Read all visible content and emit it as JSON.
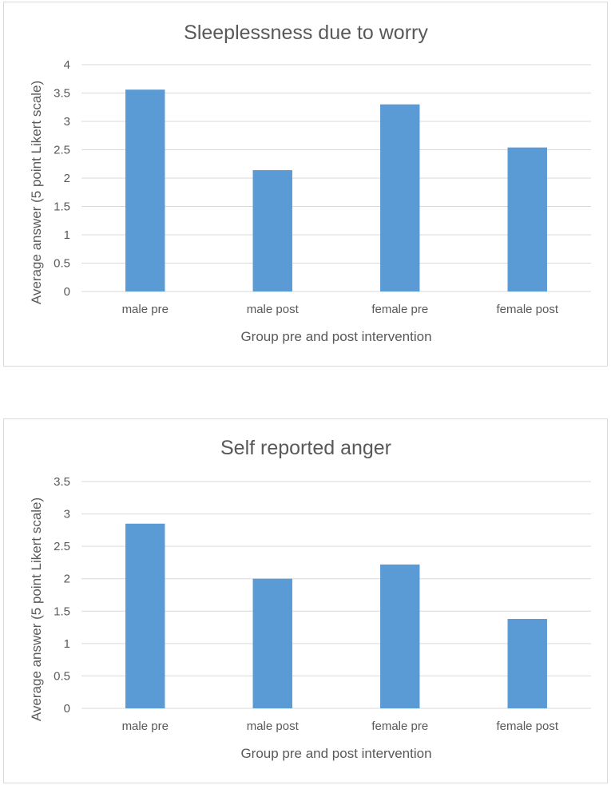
{
  "chart_data": [
    {
      "type": "bar",
      "title": "Sleeplessness due to worry",
      "categories": [
        "male pre",
        "male post",
        "female pre",
        "female post"
      ],
      "values": [
        3.56,
        2.14,
        3.3,
        2.54
      ],
      "xlabel": "Group pre and post intervention",
      "ylabel": "Average answer (5 point Likert scale)",
      "ylim": [
        0,
        4
      ],
      "yticks": [
        "0",
        "0.5",
        "1",
        "1.5",
        "2",
        "2.5",
        "3",
        "3.5",
        "4"
      ],
      "grid": true,
      "legend": "none",
      "color": "#5b9bd5"
    },
    {
      "type": "bar",
      "title": "Self reported anger",
      "categories": [
        "male pre",
        "male post",
        "female pre",
        "female post"
      ],
      "values": [
        2.85,
        2.0,
        2.22,
        1.38
      ],
      "xlabel": "Group pre and post intervention",
      "ylabel": "Average answer (5 point Likert scale)",
      "ylim": [
        0,
        3.5
      ],
      "yticks": [
        "0",
        "0.5",
        "1",
        "1.5",
        "2",
        "2.5",
        "3",
        "3.5"
      ],
      "grid": true,
      "legend": "none",
      "color": "#5b9bd5"
    }
  ]
}
